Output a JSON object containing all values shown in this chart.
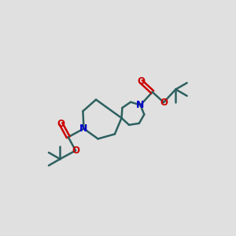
{
  "background_color": "#e0e0e0",
  "bond_color": "#2d6060",
  "N_color": "#0000cc",
  "O_color": "#cc0000",
  "figsize": [
    3.0,
    3.0
  ],
  "dpi": 100,
  "spiro": [
    0.52,
    0.5
  ],
  "N1": [
    0.35,
    0.45
  ],
  "N2": [
    0.6,
    0.56
  ],
  "ring1_r": 0.155,
  "ring2_r": 0.155
}
